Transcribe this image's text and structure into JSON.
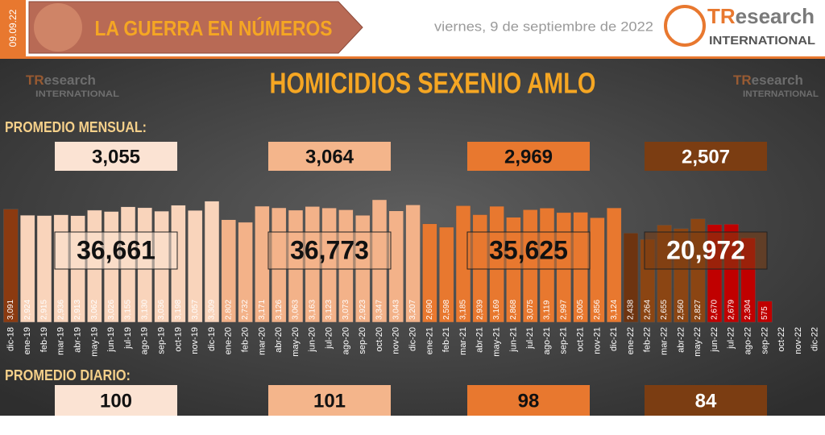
{
  "header": {
    "date_tag": "09.09.22",
    "banner": "LA GUERRA EN NÚMEROS",
    "date": "viernes, 9 de septiembre de 2022",
    "logo": {
      "mark": "TR",
      "word": "esearch",
      "sub": "INTERNATIONAL"
    }
  },
  "chart_data": {
    "type": "bar",
    "title": "HOMICIDIOS SEXENIO AMLO",
    "categories": [
      "dic-18",
      "ene-19",
      "feb-19",
      "mar-19",
      "abr-19",
      "may-19",
      "jun-19",
      "jul-19",
      "ago-19",
      "sep-19",
      "oct-19",
      "nov-19",
      "dic-19",
      "ene-20",
      "feb-20",
      "mar-20",
      "abr-20",
      "may-20",
      "jun-20",
      "jul-20",
      "ago-20",
      "sep-20",
      "oct-20",
      "nov-20",
      "dic-20",
      "ene-21",
      "feb-21",
      "mar-21",
      "abr-21",
      "may-21",
      "jun-21",
      "jul-21",
      "ago-21",
      "sep-21",
      "oct-21",
      "nov-21",
      "dic-21",
      "ene-22",
      "feb-22",
      "mar-22",
      "abr-22",
      "may-22",
      "jun-22",
      "jul-22",
      "ago-22",
      "sep-22",
      "oct-22",
      "nov-22",
      "dic-22"
    ],
    "values": [
      3091,
      2924,
      2915,
      2936,
      2913,
      3062,
      3026,
      3155,
      3130,
      3036,
      3198,
      3057,
      3309,
      2802,
      2732,
      3171,
      3126,
      3063,
      3163,
      3123,
      3073,
      2923,
      3347,
      3043,
      3207,
      2690,
      2598,
      3185,
      2939,
      3169,
      2868,
      3075,
      3119,
      2997,
      3005,
      2856,
      3124,
      2438,
      2264,
      2655,
      2560,
      2827,
      2670,
      2679,
      2304,
      575,
      null,
      null,
      null
    ],
    "value_labels": [
      "3,091",
      "2,924",
      "2,915",
      "2,936",
      "2,913",
      "3,062",
      "3,026",
      "3,155",
      "3,130",
      "3,036",
      "3,198",
      "3,057",
      "3,309",
      "2,802",
      "2,732",
      "3,171",
      "3,126",
      "3,063",
      "3,163",
      "3,123",
      "3,073",
      "2,923",
      "3,347",
      "3,043",
      "3,207",
      "2,690",
      "2,598",
      "3,185",
      "2,939",
      "3,169",
      "2,868",
      "3,075",
      "3,119",
      "2,997",
      "3,005",
      "2,856",
      "3,124",
      "2,438",
      "2,264",
      "2,655",
      "2,560",
      "2,827",
      "2,670",
      "2,679",
      "2,304",
      "575",
      null,
      null,
      null
    ],
    "colors": [
      "#8b3a10",
      "#f9d4bb",
      "#f9d4bb",
      "#f9d4bb",
      "#f9d4bb",
      "#f9d4bb",
      "#f9d4bb",
      "#f9d4bb",
      "#f9d4bb",
      "#f9d4bb",
      "#f9d4bb",
      "#f9d4bb",
      "#f9d4bb",
      "#f3b289",
      "#f3b289",
      "#f3b289",
      "#f3b289",
      "#f3b289",
      "#f3b289",
      "#f3b289",
      "#f3b289",
      "#f3b289",
      "#f3b289",
      "#f3b289",
      "#f3b289",
      "#e8782f",
      "#e8782f",
      "#e8782f",
      "#e8782f",
      "#e8782f",
      "#e8782f",
      "#e8782f",
      "#e8782f",
      "#e8782f",
      "#e8782f",
      "#e8782f",
      "#e8782f",
      "#6e3410",
      "#8b4513",
      "#8b4513",
      "#8b4513",
      "#8b4513",
      "#c00000",
      "#c00000",
      "#c00000",
      "#c00000",
      null,
      null,
      null
    ],
    "ylim": [
      0,
      3500
    ]
  },
  "summary": {
    "monthly_label": "PROMEDIO MENSUAL:",
    "monthly": [
      "3,055",
      "3,064",
      "2,969",
      "2,507"
    ],
    "totals": [
      "36,661",
      "36,773",
      "35,625",
      "20,972"
    ],
    "daily_label": "PROMEDIO DIARIO:",
    "daily": [
      "100",
      "101",
      "98",
      "84"
    ]
  }
}
